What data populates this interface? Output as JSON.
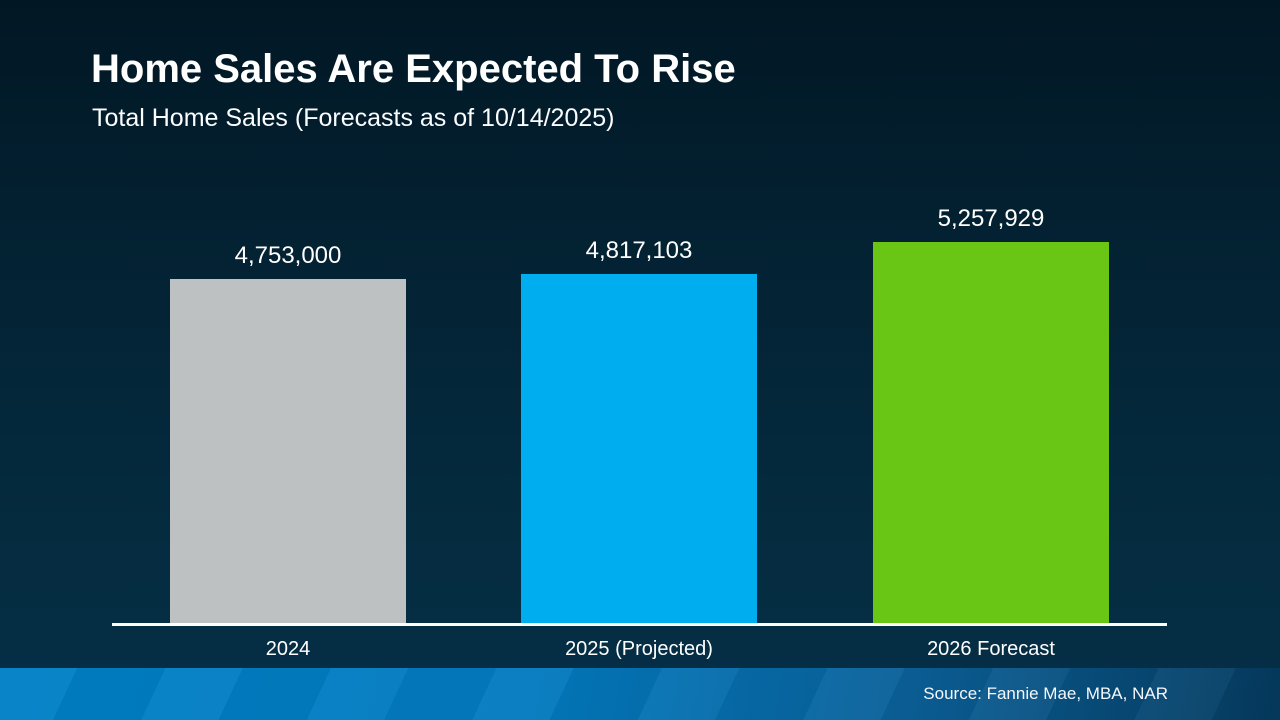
{
  "header": {
    "title": "Home Sales Are Expected To Rise",
    "subtitle": "Total Home Sales (Forecasts as of 10/14/2025)"
  },
  "chart_data": {
    "type": "bar",
    "title": "Home Sales Are Expected To Rise",
    "subtitle": "Total Home Sales (Forecasts as of 10/14/2025)",
    "categories": [
      "2024",
      "2025 (Projected)",
      "2026 Forecast"
    ],
    "values": [
      4753000,
      4817103,
      5257929
    ],
    "display_values": [
      "4,753,000",
      "4,817,103",
      "5,257,929"
    ],
    "bar_colors": [
      "#bdc1c2",
      "#00aeef",
      "#69c614"
    ],
    "xlabel": "",
    "ylabel": "",
    "ylim": [
      0,
      5257929
    ],
    "grid": false,
    "legend": false,
    "axis_line_color": "#ffffff",
    "label_color": "#ffffff"
  },
  "footer": {
    "source": "Source: Fannie Mae, MBA, NAR",
    "gradient_left": "#0080c6",
    "gradient_right": "#053a5e"
  },
  "background": {
    "top": "#021724",
    "bottom": "#053049"
  }
}
